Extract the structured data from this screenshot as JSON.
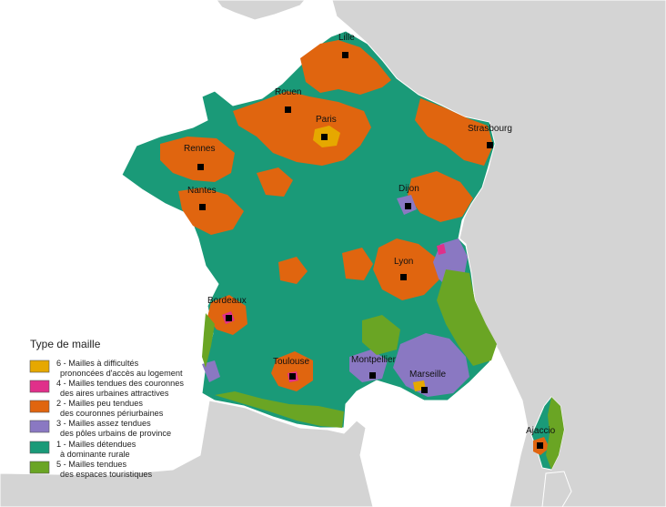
{
  "colors": {
    "background": "#ffffff",
    "neighbor_land": "#d4d4d4",
    "border": "#ffffff",
    "marker": "#000000",
    "rural": "#1a9a78",
    "peu_tendues": "#e0650f",
    "poles_urbains": "#8a78c2",
    "touristiques": "#6aa524",
    "couronnes_attractives": "#e0308a",
    "difficultes": "#e6a800"
  },
  "cities": [
    {
      "name": "Lille",
      "label": "Lille"
    },
    {
      "name": "Rouen",
      "label": "Rouen"
    },
    {
      "name": "Paris",
      "label": "Paris"
    },
    {
      "name": "Strasbourg",
      "label": "Strasbourg"
    },
    {
      "name": "Rennes",
      "label": "Rennes"
    },
    {
      "name": "Nantes",
      "label": "Nantes"
    },
    {
      "name": "Dijon",
      "label": "Dijon"
    },
    {
      "name": "Lyon",
      "label": "Lyon"
    },
    {
      "name": "Bordeaux",
      "label": "Bordeaux"
    },
    {
      "name": "Toulouse",
      "label": "Toulouse"
    },
    {
      "name": "Montpellier",
      "label": "Montpellier"
    },
    {
      "name": "Marseille",
      "label": "Marseille"
    },
    {
      "name": "Ajaccio",
      "label": "Ajaccio"
    }
  ],
  "legend": {
    "title": "Type de maille",
    "items": [
      {
        "color": "#e6a800",
        "line1": "6 - Mailles à difficultés",
        "line2": "prononcées d'accès au logement"
      },
      {
        "color": "#e0308a",
        "line1": "4 - Mailles tendues des couronnes",
        "line2": "des aires urbaines attractives"
      },
      {
        "color": "#e0650f",
        "line1": "2 - Mailles peu tendues",
        "line2": "des couronnes périurbaines"
      },
      {
        "color": "#8a78c2",
        "line1": "3 - Mailles assez tendues",
        "line2": "des pôles urbains de province"
      },
      {
        "color": "#1a9a78",
        "line1": "1 - Mailles détendues",
        "line2": "à dominante rurale"
      },
      {
        "color": "#6aa524",
        "line1": "5 - Mailles tendues",
        "line2": "des espaces touristiques"
      }
    ]
  }
}
